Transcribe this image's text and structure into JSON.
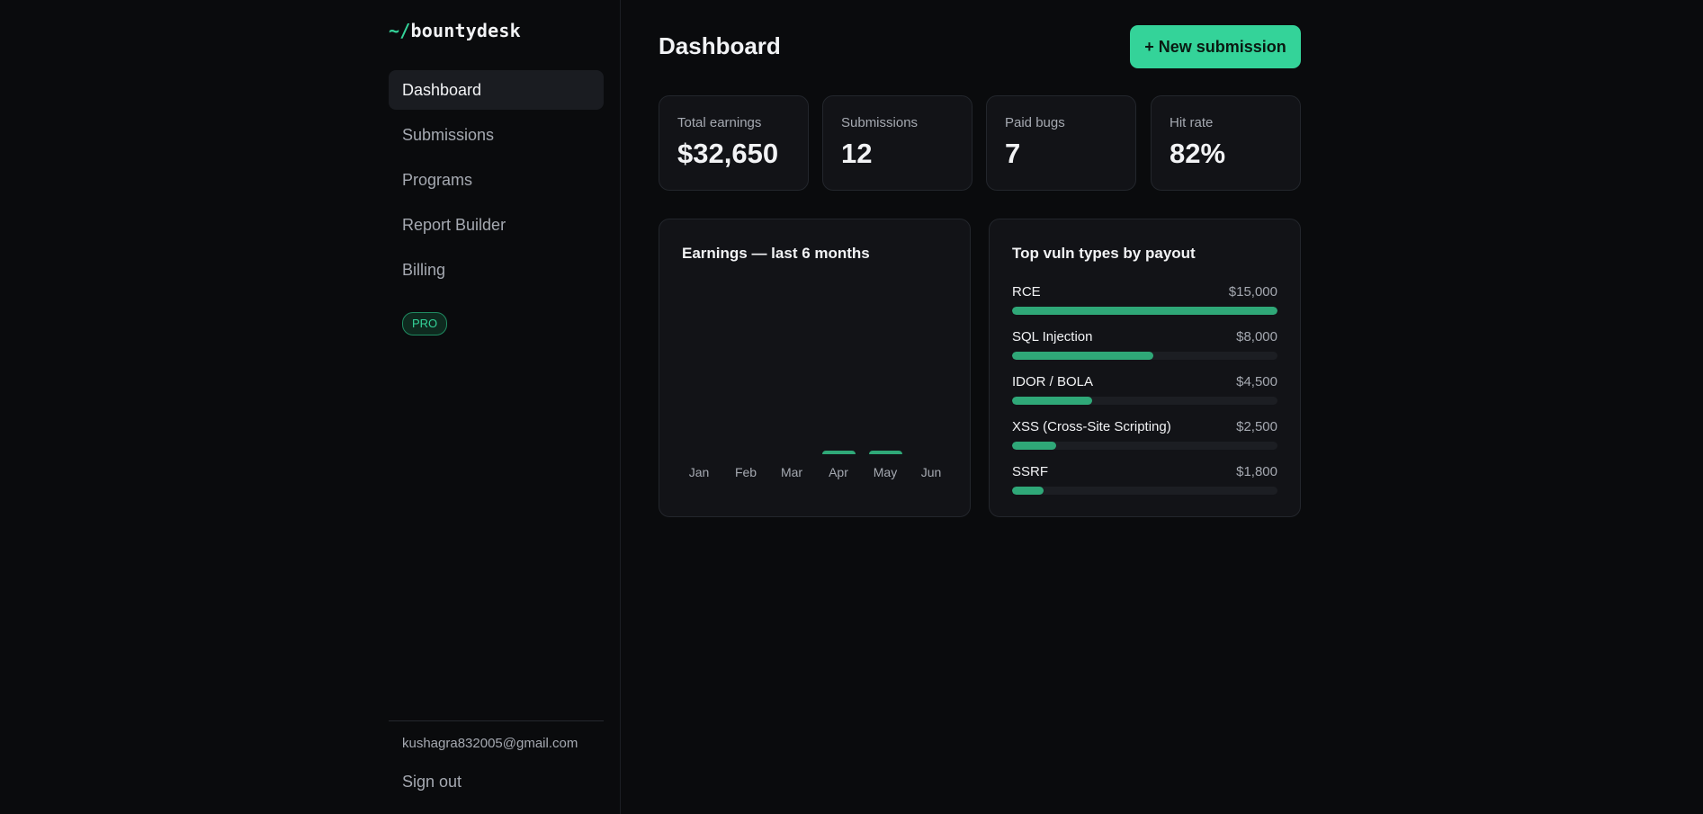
{
  "brand": {
    "prefix": "~/",
    "name": "bountydesk"
  },
  "sidebar": {
    "items": [
      {
        "label": "Dashboard",
        "active": true
      },
      {
        "label": "Submissions",
        "active": false
      },
      {
        "label": "Programs",
        "active": false
      },
      {
        "label": "Report Builder",
        "active": false
      },
      {
        "label": "Billing",
        "active": false
      }
    ],
    "plan_badge": "PRO",
    "user_email": "kushagra832005@gmail.com",
    "sign_out_label": "Sign out"
  },
  "header": {
    "title": "Dashboard",
    "new_submission_label": "+ New submission"
  },
  "stats": [
    {
      "label": "Total earnings",
      "value": "$32,650"
    },
    {
      "label": "Submissions",
      "value": "12"
    },
    {
      "label": "Paid bugs",
      "value": "7"
    },
    {
      "label": "Hit rate",
      "value": "82%"
    }
  ],
  "earnings_panel": {
    "title": "Earnings — last 6 months"
  },
  "vuln_panel": {
    "title": "Top vuln types by payout",
    "items": [
      {
        "name": "RCE",
        "amount": "$15,000",
        "value": 15000
      },
      {
        "name": "SQL Injection",
        "amount": "$8,000",
        "value": 8000
      },
      {
        "name": "IDOR / BOLA",
        "amount": "$4,500",
        "value": 4500
      },
      {
        "name": "XSS (Cross-Site Scripting)",
        "amount": "$2,500",
        "value": 2500
      },
      {
        "name": "SSRF",
        "amount": "$1,800",
        "value": 1800
      }
    ]
  },
  "colors": {
    "accent": "#34d399",
    "bar": "#2fa878",
    "background": "#0a0b0d",
    "card": "#121317"
  },
  "chart_data": {
    "type": "bar",
    "categories": [
      "Jan",
      "Feb",
      "Mar",
      "Apr",
      "May",
      "Jun"
    ],
    "values": [
      0,
      0,
      0,
      350,
      350,
      0
    ],
    "ylim": [
      0,
      18000
    ],
    "grid": false
  }
}
